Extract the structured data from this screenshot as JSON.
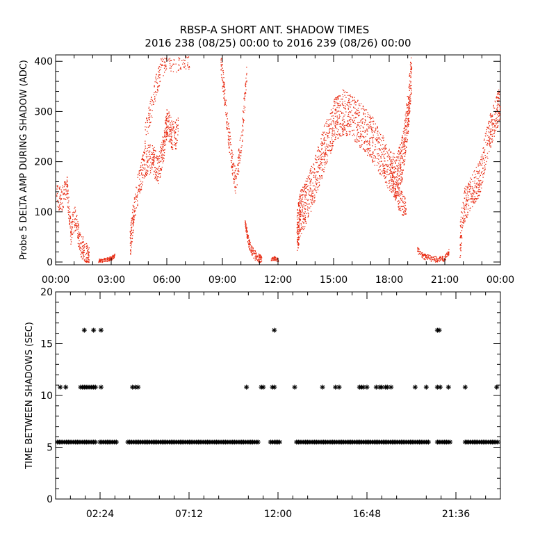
{
  "title": {
    "line1": "RBSP-A SHORT ANT. SHADOW TIMES",
    "line2": "2016 238 (08/25) 00:00 to 2016 239 (08/26) 00:00"
  },
  "colors": {
    "top_series": "#e8280f",
    "bottom_series": "#000000",
    "axes": "#000000",
    "background": "#ffffff"
  },
  "chart_data": [
    {
      "type": "scatter",
      "ylabel": "Probe 5 DELTA AMP DURING SHADOW (ADC)",
      "xlim_hours": [
        0,
        24
      ],
      "ylim": [
        0,
        410
      ],
      "x_tick_labels": [
        "00:00",
        "03:00",
        "06:00",
        "09:00",
        "12:00",
        "15:00",
        "18:00",
        "21:00",
        "00:00"
      ],
      "x_tick_hours": [
        0,
        3,
        6,
        9,
        12,
        15,
        18,
        21,
        24
      ],
      "y_ticks": [
        0,
        100,
        200,
        300,
        400
      ],
      "grid": false,
      "marker": "dot",
      "series": [
        {
          "segments": [
            {
              "x": [
                0.0,
                0.3,
                0.6,
                0.8,
                1.0,
                1.3,
                1.6,
                1.8
              ],
              "y": [
                130,
                125,
                150,
                60,
                90,
                40,
                15,
                5
              ],
              "spread": 25,
              "n": 340
            },
            {
              "x": [
                2.3,
                2.7,
                3.0,
                3.2
              ],
              "y": [
                3,
                5,
                8,
                15
              ],
              "spread": 4,
              "n": 110
            },
            {
              "x": [
                4.0,
                4.2,
                4.5,
                4.8,
                5.2,
                5.5,
                5.8,
                6.0,
                6.3,
                6.6
              ],
              "y": [
                35,
                100,
                160,
                200,
                210,
                180,
                230,
                280,
                250,
                260
              ],
              "spread": 30,
              "n": 600
            },
            {
              "x": [
                4.8,
                5.1,
                5.4,
                5.7,
                6.0,
                6.4,
                6.8,
                7.2
              ],
              "y": [
                250,
                300,
                350,
                390,
                410,
                400,
                410,
                410
              ],
              "spread": 25,
              "n": 260
            },
            {
              "x": [
                8.9,
                9.1,
                9.3,
                9.5,
                9.7,
                10.0,
                10.3
              ],
              "y": [
                400,
                330,
                260,
                200,
                160,
                240,
                380
              ],
              "spread": 25,
              "n": 280
            },
            {
              "x": [
                10.2,
                10.4,
                10.6,
                10.9,
                11.1
              ],
              "y": [
                80,
                40,
                20,
                8,
                3
              ],
              "spread": 10,
              "n": 180
            },
            {
              "x": [
                11.6,
                11.8,
                12.0
              ],
              "y": [
                5,
                8,
                4
              ],
              "spread": 4,
              "n": 50
            },
            {
              "x": [
                13.0,
                13.2,
                13.5,
                14.0,
                14.5,
                15.0,
                15.5,
                16.0,
                16.5,
                17.0,
                17.5,
                18.0,
                18.4,
                18.7,
                19.0,
                19.2
              ],
              "y": [
                60,
                100,
                120,
                170,
                230,
                280,
                300,
                290,
                270,
                250,
                220,
                180,
                170,
                210,
                300,
                390
              ],
              "spread": 45,
              "n": 1700
            },
            {
              "x": [
                18.0,
                18.3,
                18.6,
                18.9
              ],
              "y": [
                190,
                150,
                120,
                110
              ],
              "spread": 25,
              "n": 150
            },
            {
              "x": [
                19.5,
                19.8,
                20.2,
                20.6,
                21.0,
                21.2
              ],
              "y": [
                25,
                12,
                8,
                5,
                8,
                20
              ],
              "spread": 6,
              "n": 180
            },
            {
              "x": [
                21.8,
                22.0,
                22.3,
                22.6,
                22.9,
                23.2,
                23.5,
                23.8,
                24.0
              ],
              "y": [
                40,
                110,
                130,
                150,
                170,
                230,
                270,
                300,
                320
              ],
              "spread": 35,
              "n": 500
            }
          ]
        }
      ]
    },
    {
      "type": "scatter",
      "ylabel": "TIME BETWEEN SHADOWS (SEC)",
      "xlim_hours": [
        0,
        24
      ],
      "ylim": [
        0,
        20
      ],
      "x_tick_labels": [
        "02:24",
        "07:12",
        "12:00",
        "16:48",
        "21:36"
      ],
      "x_tick_hours": [
        2.4,
        7.2,
        12.0,
        16.8,
        21.6
      ],
      "y_ticks": [
        0,
        5,
        10,
        15,
        20
      ],
      "grid": false,
      "marker": "asterisk",
      "series": [
        {
          "dense_bands": [
            {
              "x0": 0.1,
              "x1": 2.2,
              "y": 5.5
            },
            {
              "x0": 2.4,
              "x1": 3.3,
              "y": 5.5
            },
            {
              "x0": 3.9,
              "x1": 11.0,
              "y": 5.5
            },
            {
              "x0": 11.6,
              "x1": 12.1,
              "y": 5.5
            },
            {
              "x0": 13.0,
              "x1": 20.2,
              "y": 5.5
            },
            {
              "x0": 20.6,
              "x1": 21.3,
              "y": 5.5
            },
            {
              "x0": 22.1,
              "x1": 23.9,
              "y": 5.5
            }
          ],
          "x": [
            0.25,
            0.55,
            1.35,
            1.45,
            1.55,
            1.65,
            1.75,
            1.85,
            1.95,
            2.05,
            2.15,
            2.45,
            4.15,
            4.3,
            4.45,
            10.3,
            11.1,
            11.2,
            11.7,
            11.8,
            12.9,
            14.4,
            15.1,
            15.3,
            16.4,
            16.5,
            16.6,
            16.8,
            17.3,
            17.5,
            17.6,
            17.8,
            17.9,
            18.1,
            19.4,
            20.0,
            20.6,
            20.75,
            21.2,
            22.1,
            23.8,
            1.55,
            2.05,
            2.45,
            11.8,
            20.6,
            20.7
          ],
          "y": [
            10.8,
            10.8,
            10.8,
            10.8,
            10.8,
            10.8,
            10.8,
            10.8,
            10.8,
            10.8,
            10.8,
            10.8,
            10.8,
            10.8,
            10.8,
            10.8,
            10.8,
            10.8,
            10.8,
            10.8,
            10.8,
            10.8,
            10.8,
            10.8,
            10.8,
            10.8,
            10.8,
            10.8,
            10.8,
            10.8,
            10.8,
            10.8,
            10.8,
            10.8,
            10.8,
            10.8,
            10.8,
            10.8,
            10.8,
            10.8,
            10.8,
            16.3,
            16.3,
            16.3,
            16.3,
            16.3,
            16.3
          ]
        }
      ]
    }
  ]
}
